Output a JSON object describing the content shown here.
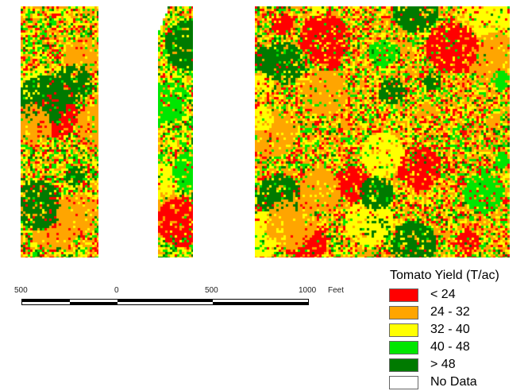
{
  "map": {
    "colors": {
      "red": "#ff0000",
      "orange": "#ffa500",
      "yellow": "#ffff00",
      "light_green": "#00e600",
      "dark_green": "#007a00",
      "no_data": "#ffffff"
    }
  },
  "scalebar": {
    "labels": [
      "500",
      "0",
      "500",
      "1000"
    ],
    "unit": "Feet"
  },
  "legend": {
    "title": "Tomato Yield (T/ac)",
    "items": [
      {
        "label": "< 24",
        "color": "#ff0000"
      },
      {
        "label": "24 - 32",
        "color": "#ffa500"
      },
      {
        "label": "32 - 40",
        "color": "#ffff00"
      },
      {
        "label": "40 - 48",
        "color": "#00e600"
      },
      {
        "label": "> 48",
        "color": "#007a00"
      },
      {
        "label": "No Data",
        "color": "#ffffff"
      }
    ]
  }
}
